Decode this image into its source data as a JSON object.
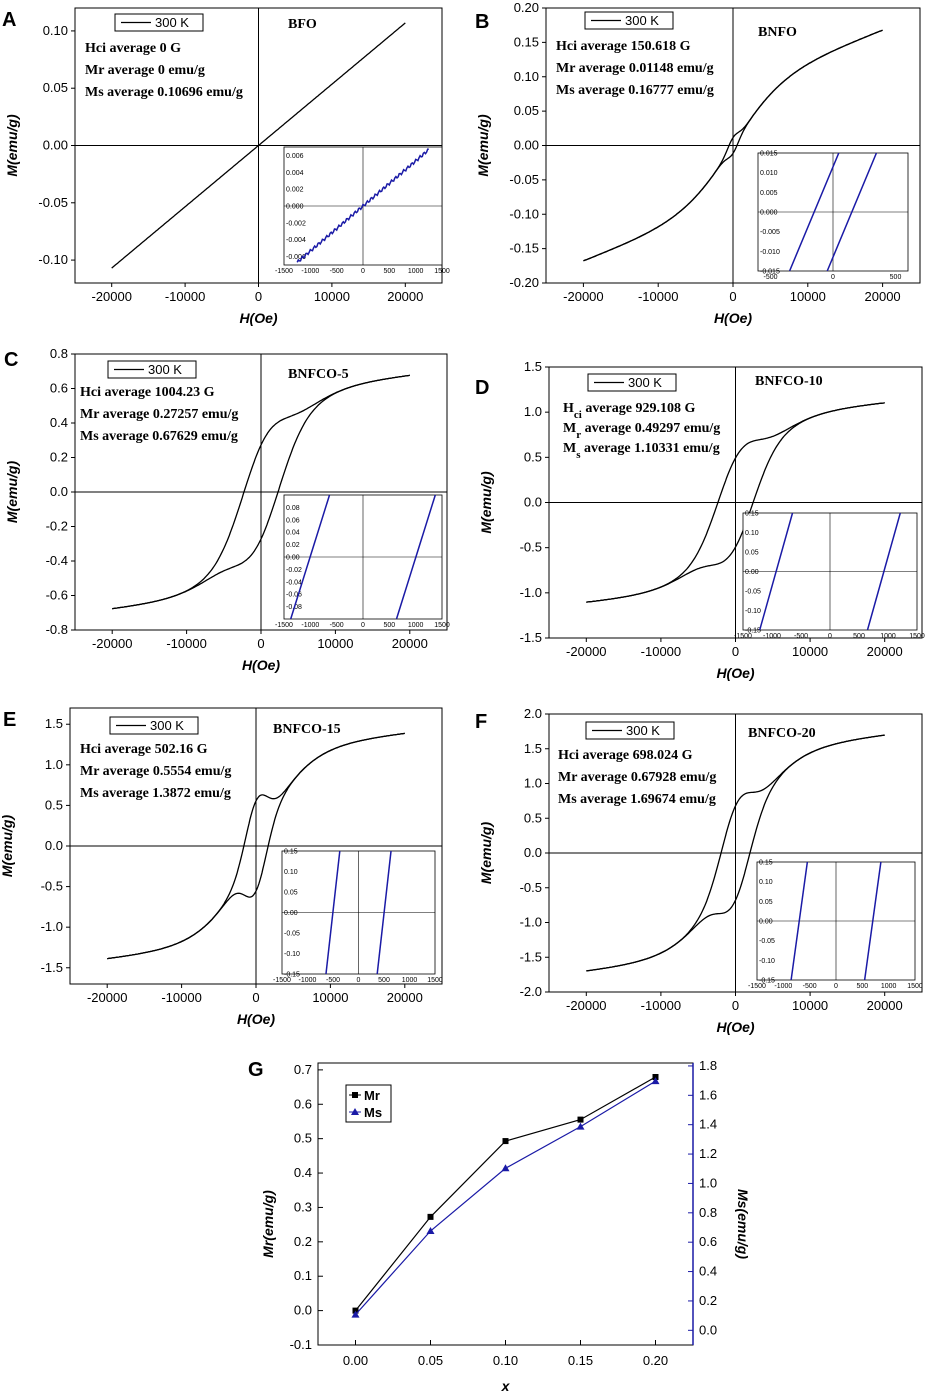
{
  "chart_data": [
    {
      "panel": "A",
      "type": "line",
      "sample": "BFO",
      "legend": "300 K",
      "xlabel": "H(Oe)",
      "ylabel": "M(emu/g)",
      "xlim": [
        -25000,
        25000
      ],
      "ylim": [
        -0.12,
        0.12
      ],
      "xticks": [
        -20000,
        -10000,
        0,
        10000,
        20000
      ],
      "yticks": [
        -0.1,
        -0.05,
        0.0,
        0.05,
        0.1
      ],
      "ytick_labels": [
        "-0.10",
        "-0.05",
        "0.00",
        "0.05",
        "0.10"
      ],
      "annotations": [
        "Hci average 0 G",
        "Mr average 0 emu/g",
        "Ms average 0.10696 emu/g"
      ],
      "Hc": 0,
      "Mr": 0,
      "Ms": 0.10696,
      "Hmax": 20000,
      "k": 1,
      "inset": {
        "xlim": [
          -1500,
          1500
        ],
        "ylim": [
          -0.007,
          0.007
        ],
        "xticks": [
          -1500,
          -1000,
          -500,
          0,
          500,
          1000,
          1500
        ],
        "yticks": [
          -0.006,
          -0.004,
          -0.002,
          0.0,
          0.002,
          0.004,
          0.006
        ],
        "ytick_labels": [
          "-0.006",
          "-0.004",
          "-0.002",
          "0.000",
          "0.002",
          "0.004",
          "0.006"
        ]
      }
    },
    {
      "panel": "B",
      "type": "line",
      "sample": "BNFO",
      "legend": "300 K",
      "xlabel": "H(Oe)",
      "ylabel": "M(emu/g)",
      "xlim": [
        -25000,
        25000
      ],
      "ylim": [
        -0.2,
        0.2
      ],
      "xticks": [
        -20000,
        -10000,
        0,
        10000,
        20000
      ],
      "yticks": [
        -0.2,
        -0.15,
        -0.1,
        -0.05,
        0.0,
        0.05,
        0.1,
        0.15,
        0.2
      ],
      "ytick_labels": [
        "-0.20",
        "-0.15",
        "-0.10",
        "-0.05",
        "0.00",
        "0.05",
        "0.10",
        "0.15",
        "0.20"
      ],
      "annotations": [
        "Hci average 150.618 G",
        "Mr average 0.01148 emu/g",
        "Ms average 0.16777 emu/g"
      ],
      "Hc": 150.618,
      "Mr": 0.01148,
      "Ms": 0.16777,
      "Hmax": 20000,
      "k": 0.5,
      "inset": {
        "xlim": [
          -600,
          600
        ],
        "ylim": [
          -0.015,
          0.015
        ],
        "xticks": [
          -500,
          0,
          500
        ],
        "yticks": [
          -0.015,
          -0.01,
          -0.005,
          0.0,
          0.005,
          0.01,
          0.015
        ],
        "ytick_labels": [
          "-0.015",
          "-0.010",
          "-0.005",
          "0.000",
          "0.005",
          "0.010",
          "0.015"
        ]
      }
    },
    {
      "panel": "C",
      "type": "line",
      "sample": "BNFCO-5",
      "legend": "300 K",
      "xlabel": "H(Oe)",
      "ylabel": "M(emu/g)",
      "xlim": [
        -25000,
        25000
      ],
      "ylim": [
        -0.8,
        0.8
      ],
      "xticks": [
        -20000,
        -10000,
        0,
        10000,
        20000
      ],
      "yticks": [
        -0.8,
        -0.6,
        -0.4,
        -0.2,
        0.0,
        0.2,
        0.4,
        0.6,
        0.8
      ],
      "ytick_labels": [
        "-0.8",
        "-0.6",
        "-0.4",
        "-0.2",
        "0.0",
        "0.2",
        "0.4",
        "0.6",
        "0.8"
      ],
      "annotations": [
        "Hci average 1004.23 G",
        "Mr average 0.27257 emu/g",
        "Ms average 0.67629 emu/g"
      ],
      "Hc": 1004.23,
      "Mr": 0.27257,
      "Ms": 0.67629,
      "Hmax": 20000,
      "k": 0.15,
      "inset": {
        "xlim": [
          -1500,
          1500
        ],
        "ylim": [
          -0.1,
          0.1
        ],
        "xticks": [
          -1500,
          -1000,
          -500,
          0,
          500,
          1000,
          1500
        ],
        "yticks": [
          -0.08,
          -0.06,
          -0.04,
          -0.02,
          0.0,
          0.02,
          0.04,
          0.06,
          0.08
        ],
        "ytick_labels": [
          "-0.08",
          "-0.06",
          "-0.04",
          "-0.02",
          "0.00",
          "0.02",
          "0.04",
          "0.06",
          "0.08"
        ]
      }
    },
    {
      "panel": "D",
      "type": "line",
      "sample": "BNFCO-10",
      "legend": "300 K",
      "xlabel": "H(Oe)",
      "ylabel": "M(emu/g)",
      "xlim": [
        -25000,
        25000
      ],
      "ylim": [
        -1.5,
        1.5
      ],
      "xticks": [
        -20000,
        -10000,
        0,
        10000,
        20000
      ],
      "yticks": [
        -1.5,
        -1.0,
        -0.5,
        0.0,
        0.5,
        1.0,
        1.5
      ],
      "ytick_labels": [
        "-1.5",
        "-1.0",
        "-0.5",
        "0.0",
        "0.5",
        "1.0",
        "1.5"
      ],
      "annotations": [
        "Hci average 929.108 G",
        "Mr average 0.49297 emu/g",
        "Ms average 1.10331 emu/g"
      ],
      "annotation_parts": [
        [
          "H",
          "ci",
          " average 929.108 G"
        ],
        [
          "M",
          "r",
          " average 0.49297 emu/g"
        ],
        [
          "M",
          "s",
          " average 1.10331 emu/g"
        ]
      ],
      "Hc": 929.108,
      "Mr": 0.49297,
      "Ms": 1.10331,
      "Hmax": 20000,
      "k": 0.15,
      "inset": {
        "xlim": [
          -1500,
          1500
        ],
        "ylim": [
          -0.15,
          0.15
        ],
        "xticks": [
          -1500,
          -1000,
          -500,
          0,
          500,
          1000,
          1500
        ],
        "yticks": [
          -0.15,
          -0.1,
          -0.05,
          0.0,
          0.05,
          0.1,
          0.15
        ],
        "ytick_labels": [
          "-0.15",
          "-0.10",
          "-0.05",
          "0.00",
          "0.05",
          "0.10",
          "0.15"
        ]
      }
    },
    {
      "panel": "E",
      "type": "line",
      "sample": "BNFCO-15",
      "legend": "300 K",
      "xlabel": "H(Oe)",
      "ylabel": "M(emu/g)",
      "xlim": [
        -25000,
        25000
      ],
      "ylim": [
        -1.7,
        1.7
      ],
      "xticks": [
        -20000,
        -10000,
        0,
        10000,
        20000
      ],
      "yticks": [
        -1.5,
        -1.0,
        -0.5,
        0.0,
        0.5,
        1.0,
        1.5
      ],
      "ytick_labels": [
        "-1.5",
        "-1.0",
        "-0.5",
        "0.0",
        "0.5",
        "1.0",
        "1.5"
      ],
      "annotations": [
        "Hci average 502.16 G",
        "Mr average 0.5554 emu/g",
        "Ms average 1.3872 emu/g"
      ],
      "Hc": 502.16,
      "Mr": 0.5554,
      "Ms": 1.3872,
      "Hmax": 20000,
      "k": 0.15,
      "inset": {
        "xlim": [
          -1500,
          1500
        ],
        "ylim": [
          -0.15,
          0.15
        ],
        "xticks": [
          -1500,
          -1000,
          -500,
          0,
          500,
          1000,
          1500
        ],
        "yticks": [
          -0.15,
          -0.1,
          -0.05,
          0.0,
          0.05,
          0.1,
          0.15
        ],
        "ytick_labels": [
          "-0.15",
          "-0.10",
          "-0.05",
          "0.00",
          "0.05",
          "0.10",
          "0.15"
        ]
      }
    },
    {
      "panel": "F",
      "type": "line",
      "sample": "BNFCO-20",
      "legend": "300 K",
      "xlabel": "H(Oe)",
      "ylabel": "M(emu/g)",
      "xlim": [
        -25000,
        25000
      ],
      "ylim": [
        -2.0,
        2.0
      ],
      "xticks": [
        -20000,
        -10000,
        0,
        10000,
        20000
      ],
      "yticks": [
        -2.0,
        -1.5,
        -1.0,
        -0.5,
        0.0,
        0.5,
        1.0,
        1.5,
        2.0
      ],
      "ytick_labels": [
        "-2.0",
        "-1.5",
        "-1.0",
        "-0.5",
        "0.0",
        "0.5",
        "1.0",
        "1.5",
        "2.0"
      ],
      "annotations": [
        "Hci average 698.024 G",
        "Mr average 0.67928 emu/g",
        "Ms average 1.69674 emu/g"
      ],
      "Hc": 698.024,
      "Mr": 0.67928,
      "Ms": 1.69674,
      "Hmax": 20000,
      "k": 0.15,
      "inset": {
        "xlim": [
          -1500,
          1500
        ],
        "ylim": [
          -0.15,
          0.15
        ],
        "xticks": [
          -1500,
          -1000,
          -500,
          0,
          500,
          1000,
          1500
        ],
        "yticks": [
          -0.15,
          -0.1,
          -0.05,
          0.0,
          0.05,
          0.1,
          0.15
        ],
        "ytick_labels": [
          "-0.15",
          "-0.10",
          "-0.05",
          "0.00",
          "0.05",
          "0.10",
          "0.15"
        ]
      }
    },
    {
      "panel": "G",
      "type": "line",
      "xlabel": "x",
      "ylabel_left": "Mr(emu/g)",
      "ylabel_right": "Ms(emu/g)",
      "x": [
        0.0,
        0.05,
        0.1,
        0.15,
        0.2
      ],
      "xticks": [
        0.0,
        0.05,
        0.1,
        0.15,
        0.2
      ],
      "xtick_labels": [
        "0.00",
        "0.05",
        "0.10",
        "0.15",
        "0.20"
      ],
      "xlim": [
        -0.025,
        0.225
      ],
      "ylim_left": [
        -0.1,
        0.72
      ],
      "ylim_right": [
        -0.1,
        1.82
      ],
      "yticks_left": [
        -0.1,
        0.0,
        0.1,
        0.2,
        0.3,
        0.4,
        0.5,
        0.6,
        0.7
      ],
      "ytick_labels_left": [
        "-0.1",
        "0.0",
        "0.1",
        "0.2",
        "0.3",
        "0.4",
        "0.5",
        "0.6",
        "0.7"
      ],
      "yticks_right": [
        0.0,
        0.2,
        0.4,
        0.6,
        0.8,
        1.0,
        1.2,
        1.4,
        1.6,
        1.8
      ],
      "ytick_labels_right": [
        "0.0",
        "0.2",
        "0.4",
        "0.6",
        "0.8",
        "1.0",
        "1.2",
        "1.4",
        "1.6",
        "1.8"
      ],
      "series": [
        {
          "name": "Mr",
          "axis": "left",
          "marker": "square",
          "color": "#000000",
          "values": [
            0.0,
            0.27257,
            0.49297,
            0.5554,
            0.67928
          ]
        },
        {
          "name": "Ms",
          "axis": "right",
          "marker": "triangle",
          "color": "#1a1aa6",
          "values": [
            0.10696,
            0.67629,
            1.10331,
            1.3872,
            1.69674
          ]
        }
      ]
    }
  ],
  "colors": {
    "curve": "#000000",
    "inset_curve": "#1a1aa6",
    "right_axis": "#1a1aa6"
  }
}
